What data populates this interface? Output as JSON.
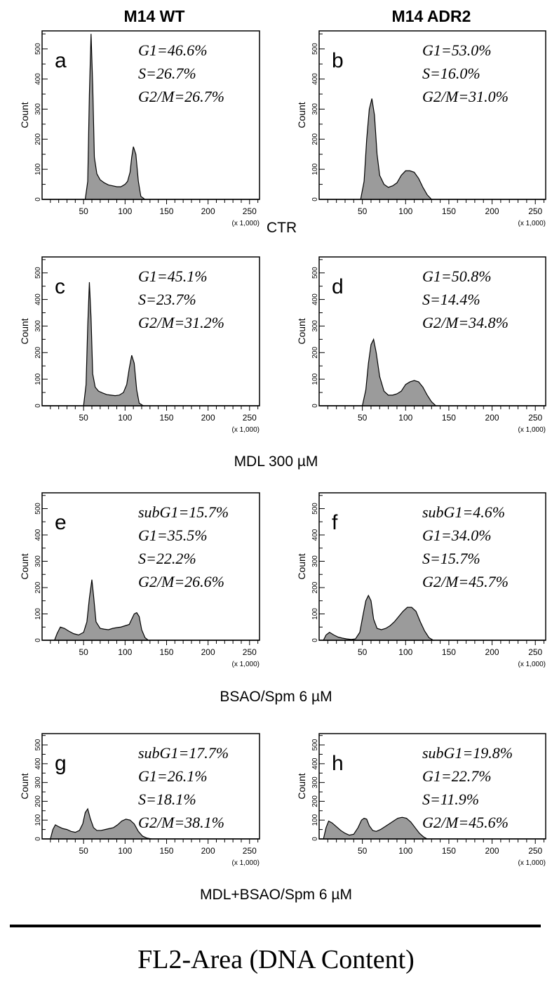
{
  "columns": [
    "M14 WT",
    "M14 ADR2"
  ],
  "row_labels": [
    "CTR",
    "MDL 300 µM",
    "BSAO/Spm 6 µM",
    "MDL+BSAO/Spm 6 µM"
  ],
  "x_axis_title": "FL2-Area (DNA Content)",
  "colors": {
    "fill": "#9b9b9b",
    "stroke": "#000000",
    "background": "#ffffff"
  },
  "chart_data": [
    {
      "type": "area",
      "panel_letter": "a",
      "column": "M14 WT",
      "condition": "CTR",
      "ylabel": "Count",
      "x_scale_label": "(x 1,000)",
      "xlim": [
        0,
        262
      ],
      "ylim": [
        0,
        560
      ],
      "xticks": [
        50,
        100,
        150,
        200,
        250
      ],
      "yticks": [
        0,
        100,
        200,
        300,
        400,
        500
      ],
      "annotations": [
        "G1=46.6%",
        "S=26.7%",
        "G2/M=26.7%"
      ],
      "x": [
        52,
        55,
        57,
        59,
        61,
        63,
        66,
        70,
        75,
        80,
        85,
        90,
        95,
        100,
        103,
        106,
        108,
        110,
        113,
        116,
        119,
        124
      ],
      "y": [
        0,
        60,
        350,
        550,
        380,
        140,
        85,
        65,
        55,
        48,
        45,
        42,
        42,
        50,
        60,
        90,
        140,
        175,
        150,
        60,
        10,
        0
      ]
    },
    {
      "type": "area",
      "panel_letter": "b",
      "column": "M14 ADR2",
      "condition": "CTR",
      "ylabel": "Count",
      "x_scale_label": "(x 1,000)",
      "xlim": [
        0,
        262
      ],
      "ylim": [
        0,
        560
      ],
      "xticks": [
        50,
        100,
        150,
        200,
        250
      ],
      "yticks": [
        0,
        100,
        200,
        300,
        400,
        500
      ],
      "annotations": [
        "G1=53.0%",
        "S=16.0%",
        "G2/M=31.0%"
      ],
      "x": [
        48,
        52,
        55,
        58,
        61,
        64,
        67,
        70,
        75,
        80,
        85,
        90,
        95,
        100,
        105,
        110,
        115,
        120,
        125,
        130
      ],
      "y": [
        0,
        60,
        200,
        300,
        335,
        280,
        150,
        80,
        50,
        40,
        45,
        55,
        80,
        95,
        95,
        90,
        70,
        40,
        15,
        0
      ]
    },
    {
      "type": "area",
      "panel_letter": "c",
      "column": "M14 WT",
      "condition": "MDL 300 µM",
      "ylabel": "Count",
      "x_scale_label": "(x 1,000)",
      "xlim": [
        0,
        262
      ],
      "ylim": [
        0,
        560
      ],
      "xticks": [
        50,
        100,
        150,
        200,
        250
      ],
      "yticks": [
        0,
        100,
        200,
        300,
        400,
        500
      ],
      "annotations": [
        "G1=45.1%",
        "S=23.7%",
        "G2/M=31.2%"
      ],
      "x": [
        50,
        53,
        55,
        57,
        59,
        61,
        64,
        68,
        73,
        78,
        83,
        88,
        93,
        98,
        102,
        105,
        108,
        111,
        114,
        117,
        122
      ],
      "y": [
        0,
        80,
        300,
        465,
        330,
        120,
        70,
        55,
        48,
        42,
        40,
        38,
        40,
        50,
        80,
        140,
        190,
        160,
        60,
        10,
        0
      ]
    },
    {
      "type": "area",
      "panel_letter": "d",
      "column": "M14 ADR2",
      "condition": "MDL 300 µM",
      "ylabel": "Count",
      "x_scale_label": "(x 1,000)",
      "xlim": [
        0,
        262
      ],
      "ylim": [
        0,
        560
      ],
      "xticks": [
        50,
        100,
        150,
        200,
        250
      ],
      "yticks": [
        0,
        100,
        200,
        300,
        400,
        500
      ],
      "annotations": [
        "G1=50.8%",
        "S=14.4%",
        "G2/M=34.8%"
      ],
      "x": [
        50,
        54,
        57,
        60,
        63,
        66,
        70,
        75,
        80,
        85,
        90,
        95,
        100,
        105,
        110,
        115,
        120,
        125,
        130,
        135
      ],
      "y": [
        0,
        60,
        160,
        230,
        250,
        200,
        110,
        55,
        40,
        40,
        45,
        55,
        80,
        90,
        95,
        90,
        70,
        40,
        15,
        0
      ]
    },
    {
      "type": "area",
      "panel_letter": "e",
      "column": "M14 WT",
      "condition": "BSAO/Spm 6 µM",
      "ylabel": "Count",
      "x_scale_label": "(x 1,000)",
      "xlim": [
        0,
        262
      ],
      "ylim": [
        0,
        560
      ],
      "xticks": [
        50,
        100,
        150,
        200,
        250
      ],
      "yticks": [
        0,
        100,
        200,
        300,
        400,
        500
      ],
      "annotations": [
        "subG1=15.7%",
        "G1=35.5%",
        "S=22.2%",
        "G2/M=26.6%"
      ],
      "x": [
        15,
        18,
        22,
        27,
        32,
        38,
        44,
        50,
        54,
        57,
        60,
        62,
        65,
        70,
        75,
        80,
        85,
        90,
        95,
        100,
        105,
        108,
        111,
        114,
        117,
        120,
        124,
        128
      ],
      "y": [
        0,
        25,
        50,
        45,
        35,
        25,
        20,
        30,
        70,
        160,
        230,
        170,
        70,
        45,
        42,
        40,
        45,
        48,
        50,
        55,
        60,
        80,
        100,
        105,
        90,
        40,
        10,
        0
      ]
    },
    {
      "type": "area",
      "panel_letter": "f",
      "column": "M14 ADR2",
      "condition": "BSAO/Spm 6 µM",
      "ylabel": "Count",
      "x_scale_label": "(x 1,000)",
      "xlim": [
        0,
        262
      ],
      "ylim": [
        0,
        560
      ],
      "xticks": [
        50,
        100,
        150,
        200,
        250
      ],
      "yticks": [
        0,
        100,
        200,
        300,
        400,
        500
      ],
      "annotations": [
        "subG1=4.6%",
        "G1=34.0%",
        "S=15.7%",
        "G2/M=45.7%"
      ],
      "x": [
        5,
        8,
        12,
        17,
        22,
        27,
        32,
        37,
        42,
        47,
        51,
        54,
        57,
        60,
        63,
        67,
        72,
        77,
        82,
        87,
        92,
        97,
        102,
        107,
        112,
        117,
        122,
        127,
        132
      ],
      "y": [
        0,
        20,
        30,
        20,
        12,
        8,
        5,
        3,
        5,
        30,
        100,
        150,
        170,
        150,
        80,
        45,
        40,
        45,
        55,
        70,
        90,
        110,
        125,
        125,
        110,
        70,
        35,
        10,
        0
      ]
    },
    {
      "type": "area",
      "panel_letter": "g",
      "column": "M14 WT",
      "condition": "MDL+BSAO/Spm 6 µM",
      "ylabel": "Count",
      "x_scale_label": "(x 1,000)",
      "xlim": [
        0,
        262
      ],
      "ylim": [
        0,
        560
      ],
      "xticks": [
        50,
        100,
        150,
        200,
        250
      ],
      "yticks": [
        0,
        100,
        200,
        300,
        400,
        500
      ],
      "annotations": [
        "subG1=17.7%",
        "G1=26.1%",
        "S=18.1%",
        "G2/M=38.1%"
      ],
      "x": [
        10,
        13,
        16,
        20,
        25,
        30,
        35,
        40,
        45,
        49,
        52,
        55,
        58,
        62,
        66,
        71,
        76,
        81,
        86,
        91,
        96,
        101,
        106,
        111,
        116,
        121,
        126,
        132
      ],
      "y": [
        0,
        50,
        75,
        65,
        55,
        50,
        40,
        35,
        45,
        80,
        140,
        160,
        110,
        60,
        45,
        45,
        50,
        55,
        60,
        75,
        95,
        105,
        100,
        80,
        40,
        15,
        5,
        0
      ]
    },
    {
      "type": "area",
      "panel_letter": "h",
      "column": "M14 ADR2",
      "condition": "MDL+BSAO/Spm 6 µM",
      "ylabel": "Count",
      "x_scale_label": "(x 1,000)",
      "xlim": [
        0,
        262
      ],
      "ylim": [
        0,
        560
      ],
      "xticks": [
        50,
        100,
        150,
        200,
        250
      ],
      "yticks": [
        0,
        100,
        200,
        300,
        400,
        500
      ],
      "annotations": [
        "subG1=19.8%",
        "G1=22.7%",
        "S=11.9%",
        "G2/M=45.6%"
      ],
      "x": [
        5,
        8,
        11,
        15,
        20,
        25,
        30,
        35,
        40,
        45,
        49,
        52,
        55,
        58,
        62,
        66,
        71,
        76,
        81,
        86,
        91,
        96,
        101,
        106,
        111,
        116,
        121,
        125
      ],
      "y": [
        0,
        60,
        95,
        85,
        65,
        45,
        30,
        20,
        25,
        60,
        100,
        110,
        105,
        70,
        45,
        40,
        50,
        65,
        80,
        95,
        110,
        115,
        110,
        90,
        60,
        30,
        10,
        0
      ]
    }
  ]
}
